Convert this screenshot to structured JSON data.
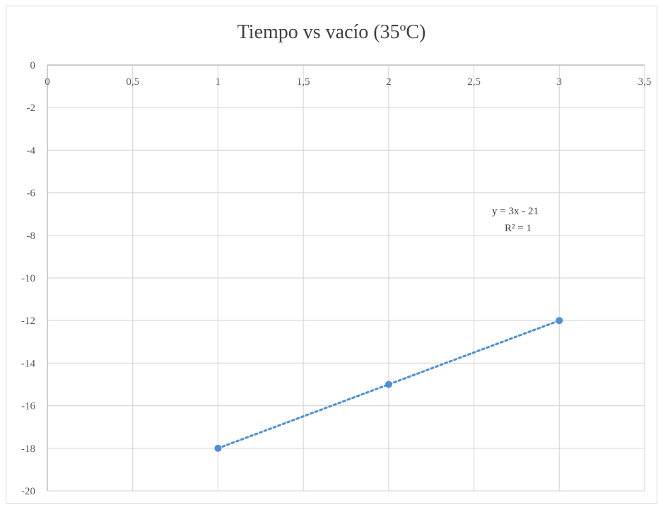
{
  "chart_data": {
    "type": "scatter",
    "title": "Tiempo vs vacío (35ºC)",
    "xlabel": "",
    "ylabel": "",
    "xlim": [
      0,
      3.5
    ],
    "ylim": [
      -20,
      0
    ],
    "x_ticks": [
      0,
      0.5,
      1,
      1.5,
      2,
      2.5,
      3,
      3.5
    ],
    "x_tick_labels": [
      "0",
      "0,5",
      "1",
      "1,5",
      "2",
      "2,5",
      "3",
      "3,5"
    ],
    "y_ticks": [
      0,
      -2,
      -4,
      -6,
      -8,
      -10,
      -12,
      -14,
      -16,
      -18,
      -20
    ],
    "y_tick_labels": [
      "0",
      "-2",
      "-4",
      "-6",
      "-8",
      "-10",
      "-12",
      "-14",
      "-16",
      "-18",
      "-20"
    ],
    "grid": true,
    "legend": "none",
    "x_axis_position": "top",
    "series": [
      {
        "x": [
          1,
          2,
          3
        ],
        "y": [
          -18,
          -15,
          -12
        ],
        "color": "#4a90d9",
        "trendline": {
          "type": "linear",
          "style": "dotted",
          "equation": "y = 3x - 21",
          "r_squared": "R² = 1"
        }
      }
    ]
  }
}
